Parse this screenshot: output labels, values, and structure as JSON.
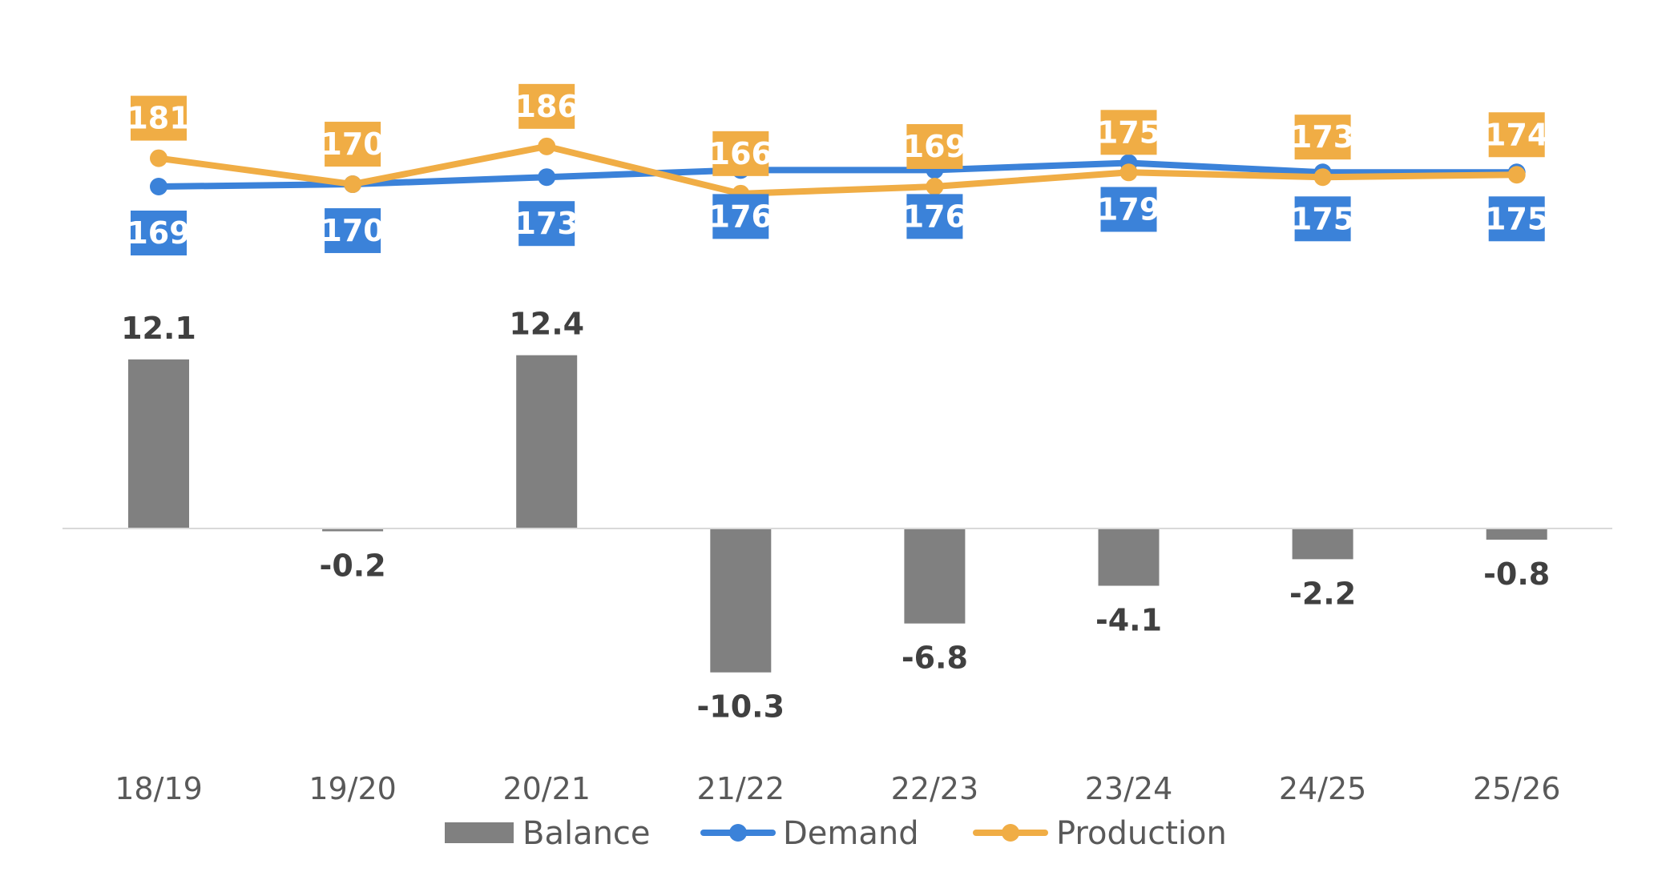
{
  "chart_data": {
    "type": "bar",
    "categories": [
      "18/19",
      "19/20",
      "20/21",
      "21/22",
      "22/23",
      "23/24",
      "24/25",
      "25/26"
    ],
    "series": [
      {
        "name": "Balance",
        "type": "bar",
        "color": "#808080",
        "values": [
          12.1,
          -0.2,
          12.4,
          -10.3,
          -6.8,
          -4.1,
          -2.2,
          -0.8
        ]
      },
      {
        "name": "Demand",
        "type": "line",
        "color": "#3b82d9",
        "values": [
          169,
          170,
          173,
          176,
          176,
          179,
          175,
          175
        ]
      },
      {
        "name": "Production",
        "type": "line",
        "color": "#f0ad45",
        "values": [
          181,
          170,
          186,
          166,
          169,
          175,
          173,
          174
        ]
      }
    ],
    "legend_position": "bottom",
    "grid": false
  }
}
